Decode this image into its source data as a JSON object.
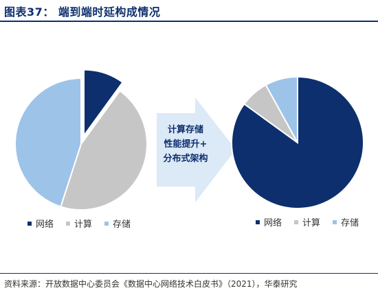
{
  "title": "图表37：  端到端时延构成情况",
  "arrow_label": [
    "计算存储",
    "性能提升+",
    "分布式架构"
  ],
  "source": "资料来源：开放数据中心委员会《数据中心网络技术白皮书》（2021），华泰研究",
  "colors": {
    "network": "#0d2f6d",
    "compute": "#c6c6c6",
    "storage": "#9dc3e9",
    "arrow": "#dce9f7"
  },
  "chart_data": [
    {
      "type": "pie",
      "series": [
        {
          "name": "网络",
          "value": 10
        },
        {
          "name": "计算",
          "value": 45
        },
        {
          "name": "存储",
          "value": 45
        }
      ],
      "legend": "bottom"
    },
    {
      "type": "pie",
      "series": [
        {
          "name": "网络",
          "value": 85
        },
        {
          "name": "计算",
          "value": 7
        },
        {
          "name": "存储",
          "value": 8
        }
      ],
      "legend": "bottom"
    }
  ]
}
